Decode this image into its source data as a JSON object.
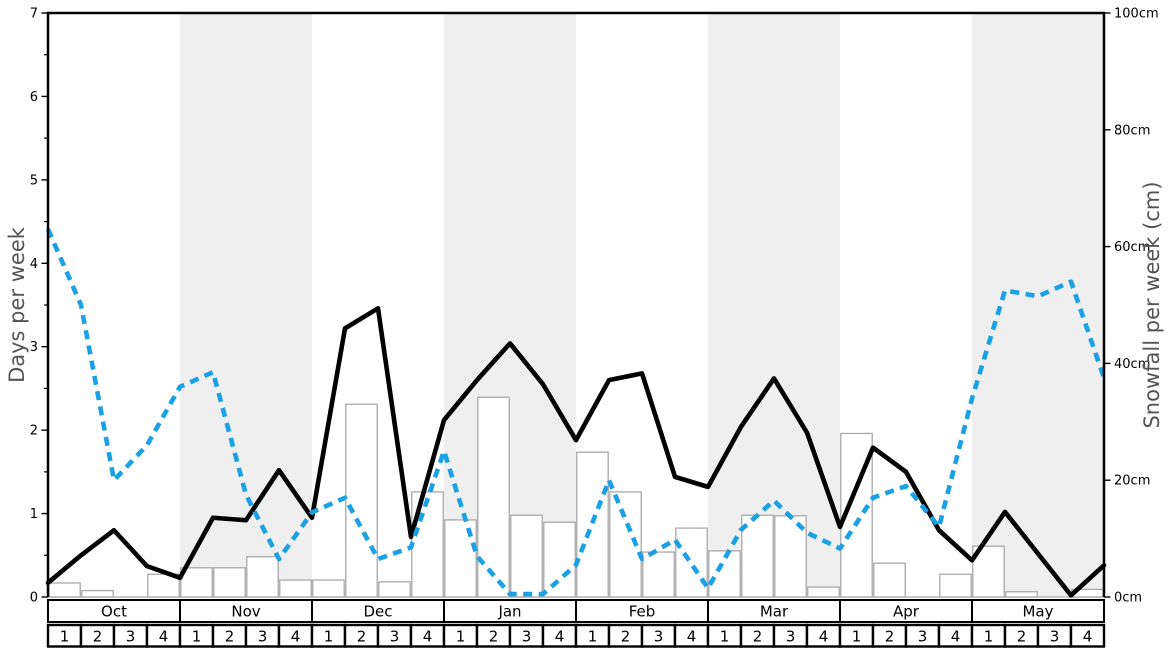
{
  "chart_data": {
    "type": "line",
    "title": "",
    "months": [
      "Oct",
      "Nov",
      "Dec",
      "Jan",
      "Feb",
      "Mar",
      "Apr",
      "May"
    ],
    "week_numbers": [
      "1",
      "2",
      "3",
      "4"
    ],
    "left_axis": {
      "title": "Days per week",
      "min": 0,
      "max": 7,
      "tick_labels": [
        "0",
        "1",
        "2",
        "3",
        "4",
        "5",
        "6",
        "7"
      ],
      "minor_tick_step": 0.5
    },
    "right_axis": {
      "title": "Snowfall per week (cm)",
      "min": 0,
      "max": 100,
      "tick_step": 20,
      "tick_labels": [
        "0cm",
        "20cm",
        "40cm",
        "60cm",
        "80cm",
        "100cm"
      ]
    },
    "series": [
      {
        "name": "snowy_days_per_week",
        "axis": "left",
        "line_style": "solid",
        "color": "#000000",
        "values": [
          0.17,
          0.5,
          0.8,
          0.37,
          0.23,
          0.95,
          0.92,
          1.52,
          0.95,
          3.22,
          3.46,
          0.72,
          2.12,
          2.6,
          3.04,
          2.55,
          1.88,
          2.6,
          2.68,
          1.44,
          1.32,
          2.04,
          2.62,
          1.97,
          0.84,
          1.79,
          1.5,
          0.8,
          0.44,
          1.02,
          0.52,
          0.02,
          0.38
        ]
      },
      {
        "name": "snowfall_per_week_cm",
        "axis": "right",
        "line_style": "dashed",
        "color": "#1aa0e4",
        "values": [
          63,
          50,
          20,
          26,
          36,
          38.5,
          17.5,
          6.5,
          14.5,
          17,
          6.5,
          8.5,
          25,
          7,
          0.5,
          0.5,
          5.5,
          20,
          6.5,
          9.8,
          1.5,
          11.5,
          16.5,
          11,
          8.3,
          17,
          19,
          12,
          34,
          52.5,
          51.5,
          54,
          37.5
        ]
      }
    ],
    "bars": {
      "name": "weekly_snowfall_bars_cm",
      "axis": "right",
      "fill": "#ffffff",
      "stroke": "#a8a8a8",
      "values": [
        2.4,
        1.1,
        0,
        3.9,
        5,
        5,
        6.9,
        2.9,
        2.9,
        33,
        2.6,
        18,
        13.2,
        34.2,
        14,
        12.8,
        24.8,
        18,
        7.7,
        11.8,
        7.9,
        14,
        13.9,
        1.7,
        28,
        5.8,
        0,
        3.9,
        8.7,
        0.9,
        0,
        1.3
      ]
    },
    "layout": {
      "shaded_month_indexes": [
        1,
        3,
        5,
        7
      ],
      "band_color": "#efefef",
      "zero_line_color": "#aaaaaa",
      "axis_title_color": "#555555",
      "frame_color": "#000000",
      "grid": false,
      "legend": false
    }
  }
}
